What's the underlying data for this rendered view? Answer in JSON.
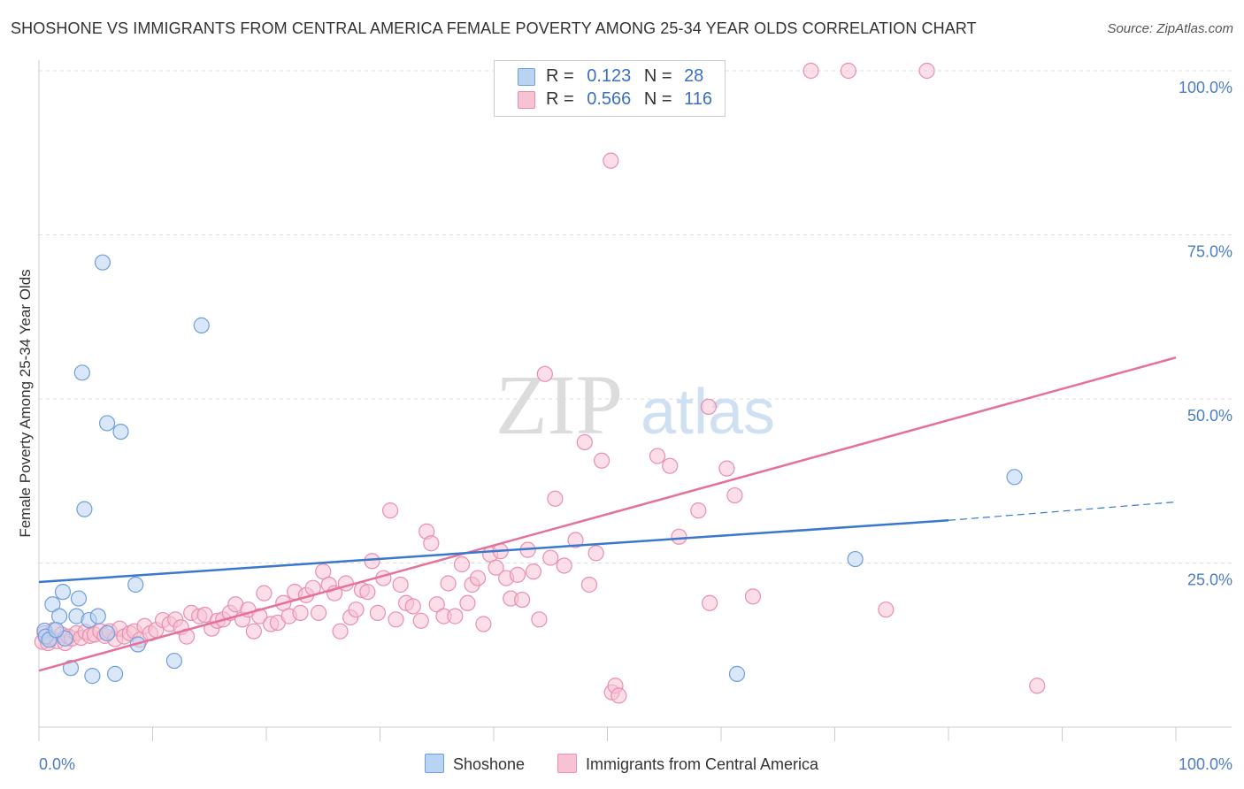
{
  "title": "SHOSHONE VS IMMIGRANTS FROM CENTRAL AMERICA FEMALE POVERTY AMONG 25-34 YEAR OLDS CORRELATION CHART",
  "source": "Source: ZipAtlas.com",
  "watermark": {
    "zip": "ZIP",
    "atlas": "atlas"
  },
  "legend": {
    "r_label": "R =",
    "n_label": "N =",
    "series1": {
      "r": "0.123",
      "n": "28"
    },
    "series2": {
      "r": "0.566",
      "n": "116"
    }
  },
  "bottom_legend": {
    "series1": "Shoshone",
    "series2": "Immigrants from Central America"
  },
  "colors": {
    "blue_fill": "#b9d3f2",
    "blue_stroke": "#6f9fdc",
    "blue_line": "#3a78d0",
    "pink_fill": "#f7c3d3",
    "pink_stroke": "#e98fae",
    "pink_line": "#e5719a",
    "grid": "#dddddd",
    "axis_text": "#4a7cc7"
  },
  "chart_data": {
    "type": "scatter",
    "title": "SHOSHONE VS IMMIGRANTS FROM CENTRAL AMERICA FEMALE POVERTY AMONG 25-34 YEAR OLDS CORRELATION CHART",
    "xlabel": "",
    "ylabel": "Female Poverty Among 25-34 Year Olds",
    "xlim": [
      0,
      100
    ],
    "ylim": [
      0,
      100
    ],
    "x_tick_labels": [
      "0.0%",
      "100.0%"
    ],
    "y_tick_labels": [
      "100.0%",
      "75.0%",
      "50.0%",
      "25.0%"
    ],
    "y_ticks": [
      100,
      75,
      50,
      25
    ],
    "series": [
      {
        "name": "Shoshone",
        "r": 0.123,
        "n": 28,
        "trend": {
          "x0": 0,
          "y0": 22.1,
          "x1": 80,
          "y1": 31.5,
          "dash_x1": 100,
          "dash_y1": 34.3
        },
        "points": [
          [
            0.5,
            14.7
          ],
          [
            0.6,
            13.8
          ],
          [
            0.9,
            13.3
          ],
          [
            1.2,
            18.7
          ],
          [
            1.8,
            16.9
          ],
          [
            2.1,
            20.6
          ],
          [
            2.3,
            13.5
          ],
          [
            2.8,
            9.0
          ],
          [
            3.3,
            16.9
          ],
          [
            3.5,
            19.6
          ],
          [
            3.8,
            54.0
          ],
          [
            4.0,
            33.2
          ],
          [
            4.4,
            16.3
          ],
          [
            4.7,
            7.8
          ],
          [
            5.2,
            16.9
          ],
          [
            5.6,
            70.8
          ],
          [
            6.0,
            46.3
          ],
          [
            6.7,
            8.1
          ],
          [
            7.2,
            45.0
          ],
          [
            8.5,
            21.7
          ],
          [
            8.7,
            12.6
          ],
          [
            11.9,
            10.1
          ],
          [
            14.3,
            61.2
          ],
          [
            61.4,
            8.1
          ],
          [
            71.8,
            25.6
          ],
          [
            85.8,
            38.1
          ],
          [
            6.0,
            14.3
          ],
          [
            1.5,
            14.8
          ]
        ]
      },
      {
        "name": "Immigrants from Central America",
        "r": 0.566,
        "n": 116,
        "trend": {
          "x0": 0,
          "y0": 8.6,
          "x1": 100,
          "y1": 56.3
        },
        "points": [
          [
            0.3,
            13.0
          ],
          [
            0.5,
            14.3
          ],
          [
            0.8,
            12.8
          ],
          [
            1.0,
            13.6
          ],
          [
            1.3,
            14.8
          ],
          [
            1.6,
            13.1
          ],
          [
            2.0,
            14.1
          ],
          [
            2.3,
            12.8
          ],
          [
            2.6,
            13.8
          ],
          [
            2.9,
            13.5
          ],
          [
            3.3,
            14.3
          ],
          [
            3.7,
            13.6
          ],
          [
            4.1,
            14.5
          ],
          [
            4.5,
            13.9
          ],
          [
            4.9,
            14.1
          ],
          [
            5.4,
            14.6
          ],
          [
            5.8,
            13.9
          ],
          [
            6.2,
            14.6
          ],
          [
            6.7,
            13.4
          ],
          [
            7.1,
            15.0
          ],
          [
            7.5,
            13.8
          ],
          [
            8.0,
            14.3
          ],
          [
            8.4,
            14.6
          ],
          [
            8.9,
            13.3
          ],
          [
            9.3,
            15.4
          ],
          [
            9.8,
            14.3
          ],
          [
            10.3,
            14.8
          ],
          [
            10.9,
            16.3
          ],
          [
            11.5,
            15.7
          ],
          [
            12.0,
            16.4
          ],
          [
            12.5,
            15.2
          ],
          [
            13.0,
            13.8
          ],
          [
            13.4,
            17.4
          ],
          [
            14.1,
            16.9
          ],
          [
            14.6,
            17.1
          ],
          [
            15.2,
            15.0
          ],
          [
            15.7,
            16.2
          ],
          [
            16.2,
            16.4
          ],
          [
            16.8,
            17.4
          ],
          [
            17.3,
            18.7
          ],
          [
            17.9,
            16.4
          ],
          [
            18.4,
            17.9
          ],
          [
            18.9,
            14.6
          ],
          [
            19.4,
            16.9
          ],
          [
            19.8,
            20.4
          ],
          [
            20.4,
            15.7
          ],
          [
            21.0,
            15.9
          ],
          [
            21.5,
            18.9
          ],
          [
            22.0,
            16.9
          ],
          [
            22.5,
            20.6
          ],
          [
            23.0,
            17.4
          ],
          [
            23.5,
            20.1
          ],
          [
            24.1,
            21.2
          ],
          [
            24.6,
            17.4
          ],
          [
            25.0,
            23.7
          ],
          [
            25.5,
            21.7
          ],
          [
            26.0,
            20.4
          ],
          [
            26.5,
            14.6
          ],
          [
            27.0,
            21.9
          ],
          [
            27.4,
            16.7
          ],
          [
            27.9,
            17.9
          ],
          [
            28.4,
            20.9
          ],
          [
            28.9,
            20.6
          ],
          [
            29.3,
            25.3
          ],
          [
            29.8,
            17.4
          ],
          [
            30.3,
            22.7
          ],
          [
            30.9,
            33.0
          ],
          [
            31.4,
            16.4
          ],
          [
            31.8,
            21.7
          ],
          [
            32.3,
            18.9
          ],
          [
            32.9,
            18.4
          ],
          [
            33.6,
            16.2
          ],
          [
            34.1,
            29.8
          ],
          [
            34.5,
            28.0
          ],
          [
            35.0,
            18.7
          ],
          [
            35.6,
            16.9
          ],
          [
            36.0,
            21.9
          ],
          [
            36.6,
            16.9
          ],
          [
            37.2,
            24.8
          ],
          [
            37.7,
            18.9
          ],
          [
            38.1,
            21.7
          ],
          [
            38.6,
            22.7
          ],
          [
            39.1,
            15.7
          ],
          [
            39.7,
            26.3
          ],
          [
            40.2,
            24.3
          ],
          [
            40.6,
            26.8
          ],
          [
            41.1,
            22.7
          ],
          [
            41.5,
            19.6
          ],
          [
            42.1,
            23.2
          ],
          [
            42.5,
            19.4
          ],
          [
            43.0,
            27.0
          ],
          [
            43.5,
            23.7
          ],
          [
            44.0,
            16.4
          ],
          [
            44.5,
            53.8
          ],
          [
            45.0,
            25.8
          ],
          [
            45.4,
            34.8
          ],
          [
            46.2,
            24.6
          ],
          [
            47.2,
            28.5
          ],
          [
            48.0,
            43.4
          ],
          [
            48.4,
            21.7
          ],
          [
            49.0,
            26.5
          ],
          [
            49.5,
            40.6
          ],
          [
            50.3,
            86.3
          ],
          [
            50.4,
            5.3
          ],
          [
            50.7,
            6.3
          ],
          [
            51.0,
            4.8
          ],
          [
            54.4,
            41.3
          ],
          [
            55.5,
            39.8
          ],
          [
            56.3,
            29.0
          ],
          [
            58.0,
            33.0
          ],
          [
            58.9,
            48.8
          ],
          [
            59.0,
            18.9
          ],
          [
            60.5,
            39.4
          ],
          [
            61.2,
            35.3
          ],
          [
            62.8,
            19.9
          ],
          [
            74.5,
            17.9
          ],
          [
            87.8,
            6.3
          ],
          [
            67.9,
            100.0
          ],
          [
            71.2,
            100.0
          ],
          [
            78.1,
            100.0
          ]
        ]
      }
    ]
  }
}
